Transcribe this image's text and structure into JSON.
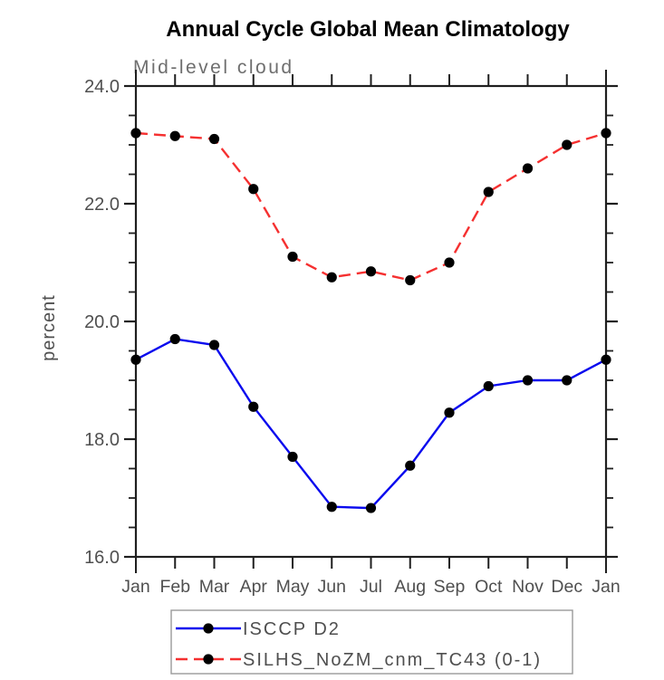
{
  "chart_data": {
    "type": "line",
    "title": "Annual Cycle Global Mean Climatology",
    "subtitle": "Mid-level cloud",
    "ylabel": "percent",
    "x_categories": [
      "Jan",
      "Feb",
      "Mar",
      "Apr",
      "May",
      "Jun",
      "Jul",
      "Aug",
      "Sep",
      "Oct",
      "Nov",
      "Dec",
      "Jan"
    ],
    "ylim": [
      16.0,
      24.0
    ],
    "y_major_ticks": [
      16.0,
      18.0,
      20.0,
      22.0,
      24.0
    ],
    "y_minor_step": 0.5,
    "grid": false,
    "legend_position": "bottom",
    "palette": {
      "axis_color": "#1f1f1f",
      "tick_label_color": "#4f4f4f",
      "subtitle_color": "#6e6e6e",
      "legend_border_color": "#9a9a9a",
      "background": "#ffffff"
    },
    "series": [
      {
        "name": "ISCCP D2",
        "color": "#0a0aee",
        "line_style": "solid",
        "marker": "filled-circle",
        "marker_color": "#000000",
        "values": [
          19.35,
          19.7,
          19.6,
          18.55,
          17.7,
          16.85,
          16.83,
          17.55,
          18.45,
          18.9,
          19.0,
          19.0,
          19.35
        ]
      },
      {
        "name": "SILHS_NoZM_cnm_TC43 (0-1)",
        "color": "#f53030",
        "line_style": "dashed",
        "marker": "filled-circle",
        "marker_color": "#000000",
        "values": [
          23.2,
          23.15,
          23.1,
          22.25,
          21.1,
          20.75,
          20.85,
          20.7,
          21.0,
          22.2,
          22.6,
          23.0,
          23.2
        ]
      }
    ]
  }
}
